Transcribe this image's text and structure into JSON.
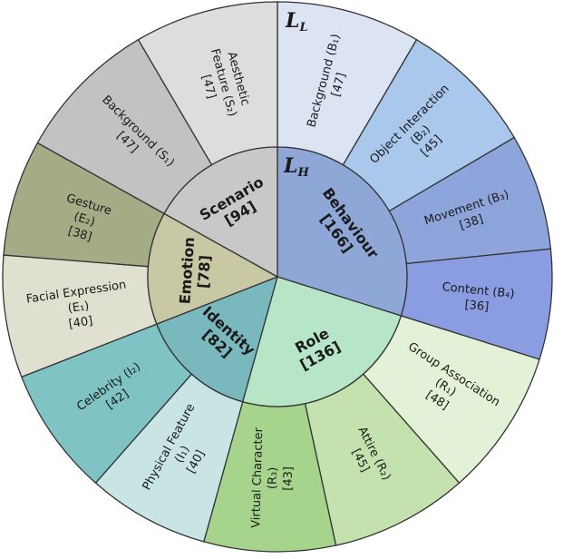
{
  "level_labels": {
    "outer": "L",
    "outer_sub": "L",
    "inner": "L",
    "inner_sub": "H"
  },
  "chart_data": {
    "type": "sunburst",
    "unit": "count",
    "inner": [
      {
        "id": "behaviour",
        "lines": [
          "Behaviour",
          "[166]"
        ],
        "value": 166,
        "color": "#8fa7d6"
      },
      {
        "id": "role",
        "lines": [
          "Role",
          "[136]"
        ],
        "value": 136,
        "color": "#b6e5c8"
      },
      {
        "id": "identity",
        "lines": [
          "Identity",
          "[82]"
        ],
        "value": 82,
        "color": "#79b9bd"
      },
      {
        "id": "emotion",
        "lines": [
          "Emotion",
          "[78]"
        ],
        "value": 78,
        "color": "#c9c8a5"
      },
      {
        "id": "scenario",
        "lines": [
          "Scenario",
          "[94]"
        ],
        "value": 94,
        "color": "#c8c8c8"
      }
    ],
    "outer": [
      {
        "id": "b1",
        "parent": "behaviour",
        "lines": [
          "Background (B₁)",
          "[47]"
        ],
        "value": 47,
        "color": "#dce4f4"
      },
      {
        "id": "b2",
        "parent": "behaviour",
        "lines": [
          "Object Interaction",
          "(B₂)",
          "[45]"
        ],
        "value": 45,
        "color": "#a9c8ec"
      },
      {
        "id": "b3",
        "parent": "behaviour",
        "lines": [
          "Movement (B₃)",
          "[38]"
        ],
        "value": 38,
        "color": "#8ea5dc"
      },
      {
        "id": "b4",
        "parent": "behaviour",
        "lines": [
          "Content (B₄)",
          "[36]"
        ],
        "value": 36,
        "color": "#8a9de3"
      },
      {
        "id": "r1",
        "parent": "role",
        "lines": [
          "Group Association",
          "(R₁)",
          "[48]"
        ],
        "value": 48,
        "color": "#e3f1d6"
      },
      {
        "id": "r2",
        "parent": "role",
        "lines": [
          "Attire (R₂)",
          "[45]"
        ],
        "value": 45,
        "color": "#c4e2ae"
      },
      {
        "id": "r3",
        "parent": "role",
        "lines": [
          "Virtual Character",
          "(R₃)",
          "[43]"
        ],
        "value": 43,
        "color": "#a7d48c"
      },
      {
        "id": "i1",
        "parent": "identity",
        "lines": [
          "Physical Feature",
          "(I₁)",
          "[40]"
        ],
        "value": 40,
        "color": "#c8e4e4"
      },
      {
        "id": "i2",
        "parent": "identity",
        "lines": [
          "Celebrity (I₂)",
          "[42]"
        ],
        "value": 42,
        "color": "#7fc3c5"
      },
      {
        "id": "e1",
        "parent": "emotion",
        "lines": [
          "Facial Expression",
          "(E₁)",
          "[40]"
        ],
        "value": 40,
        "color": "#e0e0d0"
      },
      {
        "id": "e2",
        "parent": "emotion",
        "lines": [
          "Gesture",
          "(E₂)",
          "[38]"
        ],
        "value": 38,
        "color": "#a3ac84"
      },
      {
        "id": "s1",
        "parent": "scenario",
        "lines": [
          "Background (S₁)",
          "[47]"
        ],
        "value": 47,
        "color": "#c2c2c2"
      },
      {
        "id": "s2",
        "parent": "scenario",
        "lines": [
          "Aesthetic",
          "Feature (S₂)",
          "[47]"
        ],
        "value": 47,
        "color": "#dddddd"
      }
    ]
  }
}
